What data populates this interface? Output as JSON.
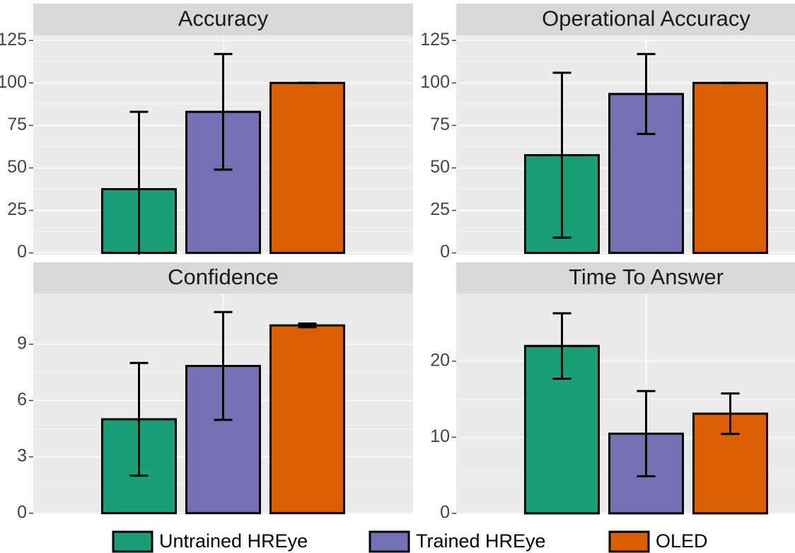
{
  "legend": [
    {
      "name": "Untrained HREye",
      "color": "#1b9e77"
    },
    {
      "name": "Trained HREye",
      "color": "#7570b3"
    },
    {
      "name": "OLED",
      "color": "#d95f02"
    }
  ],
  "chart_data": [
    {
      "type": "bar",
      "title": "Accuracy",
      "values": [
        37.5,
        83,
        100
      ],
      "errors": [
        45.5,
        34,
        0
      ],
      "ylim": [
        -1,
        128
      ],
      "yticks": [
        0,
        25,
        50,
        75,
        100,
        125
      ],
      "grid": true
    },
    {
      "type": "bar",
      "title": "Operational Accuracy",
      "values": [
        57.5,
        93.5,
        100
      ],
      "errors": [
        48.5,
        23.5,
        0
      ],
      "ylim": [
        -1,
        128
      ],
      "yticks": [
        0,
        25,
        50,
        75,
        100,
        125
      ],
      "grid": true
    },
    {
      "type": "bar",
      "title": "Confidence",
      "values": [
        5,
        7.84,
        10
      ],
      "errors": [
        3,
        2.87,
        0.1
      ],
      "ylim": [
        -0.05,
        11.7
      ],
      "yticks": [
        0,
        3,
        6,
        9
      ],
      "grid": true
    },
    {
      "type": "bar",
      "title": "Time To Answer",
      "values": [
        22,
        10.47,
        13.1
      ],
      "errors": [
        4.3,
        5.6,
        2.66
      ],
      "ylim": [
        -0.1,
        28.9
      ],
      "yticks": [
        0,
        10,
        20
      ],
      "grid": true
    }
  ]
}
